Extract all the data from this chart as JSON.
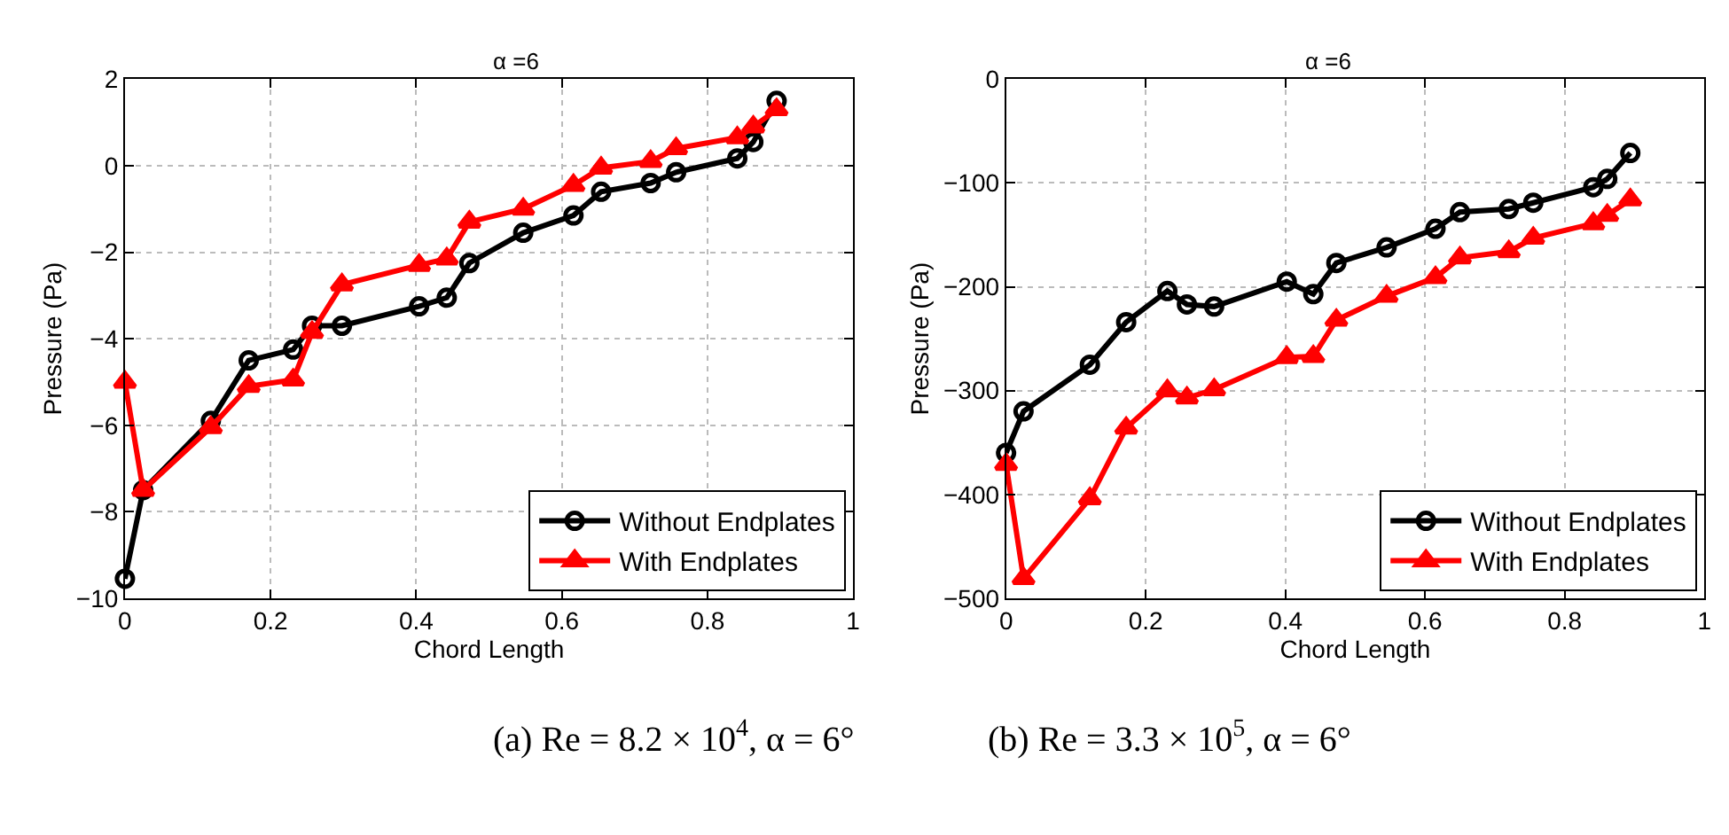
{
  "chart_data": [
    {
      "type": "line",
      "title": "α =6",
      "xlabel": "Chord Length",
      "ylabel": "Pressure (Pa)",
      "x": [
        0,
        0.025,
        0.118,
        0.17,
        0.231,
        0.257,
        0.298,
        0.404,
        0.442,
        0.473,
        0.547,
        0.616,
        0.654,
        0.722,
        0.757,
        0.841,
        0.863,
        0.895
      ],
      "series": [
        {
          "name": "Without Endplates",
          "color": "#000000",
          "marker": "circle",
          "values": [
            -9.55,
            -7.5,
            -5.9,
            -4.5,
            -4.25,
            -3.7,
            -3.7,
            -3.25,
            -3.05,
            -2.25,
            -1.55,
            -1.15,
            -0.6,
            -0.4,
            -0.15,
            0.17,
            0.55,
            1.5
          ]
        },
        {
          "name": "With Endplates",
          "color": "#ff0000",
          "marker": "triangle",
          "values": [
            -5.0,
            -7.5,
            -6.05,
            -5.1,
            -4.95,
            -3.85,
            -2.75,
            -2.3,
            -2.15,
            -1.3,
            -1.0,
            -0.45,
            -0.05,
            0.1,
            0.4,
            0.65,
            0.9,
            1.3
          ]
        }
      ],
      "xlim": [
        0,
        1
      ],
      "xticks": [
        0,
        0.2,
        0.4,
        0.6,
        0.8,
        1
      ],
      "ylim": [
        -10,
        2
      ],
      "yticks": [
        -10,
        -8,
        -6,
        -4,
        -2,
        0,
        2
      ],
      "grid": true,
      "legend": "bottom right",
      "line_style": "solid",
      "annotations": [
        "(a) Re = 8.2 × 10$^{4}$, α = 6°"
      ]
    },
    {
      "type": "line",
      "title": "α =6",
      "xlabel": "Chord Length",
      "ylabel": "Pressure (Pa)",
      "x": [
        0,
        0.025,
        0.12,
        0.172,
        0.231,
        0.259,
        0.298,
        0.402,
        0.44,
        0.473,
        0.545,
        0.615,
        0.65,
        0.72,
        0.755,
        0.841,
        0.861,
        0.894
      ],
      "series": [
        {
          "name": "Without Endplates",
          "color": "#000000",
          "marker": "circle",
          "values": [
            -360,
            -320,
            -275,
            -234,
            -204,
            -217,
            -219,
            -195,
            -207,
            -177,
            -162,
            -144,
            -128,
            -125,
            -119,
            -104,
            -96,
            -71
          ]
        },
        {
          "name": "With Endplates",
          "color": "#ff0000",
          "marker": "triangle",
          "values": [
            -371,
            -481,
            -404,
            -336,
            -300,
            -307,
            -299,
            -268,
            -267,
            -232,
            -209,
            -191,
            -172,
            -166,
            -153,
            -139,
            -131,
            -116
          ]
        }
      ],
      "xlim": [
        0,
        1
      ],
      "xticks": [
        0,
        0.2,
        0.4,
        0.6,
        0.8,
        1
      ],
      "ylim": [
        -500,
        0
      ],
      "yticks": [
        -500,
        -400,
        -300,
        -200,
        -100,
        0
      ],
      "grid": true,
      "legend": "bottom right",
      "line_style": "solid",
      "annotations": [
        "(b) Re = 3.3 × 10$^{5}$, α = 6°"
      ]
    }
  ]
}
